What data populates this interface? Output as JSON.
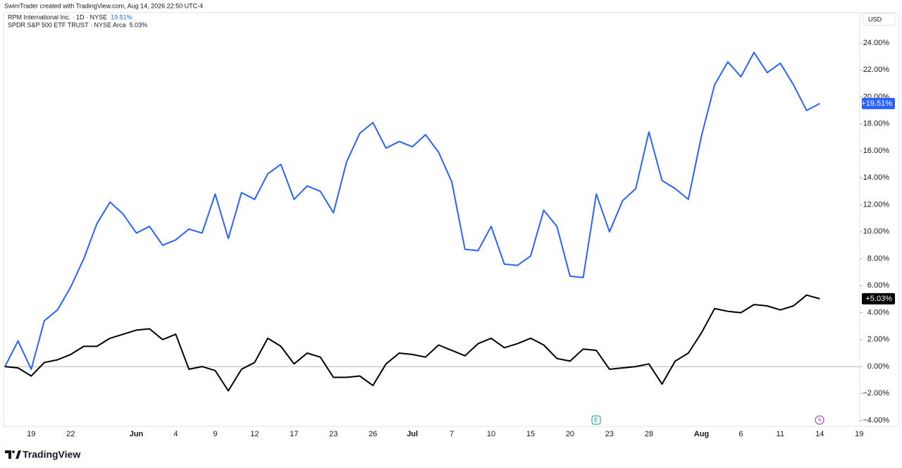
{
  "chart_data": {
    "type": "line",
    "title": "SwimTrader created with TradingView.com, Aug 14, 2026 22:50 UTC-4",
    "currency": "USD",
    "logo": "TradingView",
    "categories": [
      null,
      null,
      "19",
      null,
      null,
      "22",
      null,
      null,
      null,
      null,
      "Jun",
      null,
      null,
      "4",
      null,
      null,
      "9",
      null,
      null,
      "12",
      null,
      null,
      "17",
      null,
      null,
      "23",
      null,
      null,
      "26",
      null,
      null,
      "Jul",
      null,
      null,
      "7",
      null,
      null,
      "10",
      null,
      null,
      "15",
      null,
      null,
      "20",
      null,
      null,
      "23",
      null,
      null,
      "28",
      null,
      null,
      null,
      "Aug",
      null,
      null,
      "6",
      null,
      null,
      "11",
      null,
      null,
      "14",
      null,
      null,
      "19"
    ],
    "series": [
      {
        "name": "RPM International Inc. · 1D · NYSE",
        "color": "#2962ff",
        "legend_value": "19.51%",
        "last_label": "+19.51%",
        "values": [
          0,
          1.9,
          -0.2,
          3.4,
          4.2,
          5.9,
          8.0,
          10.6,
          12.2,
          11.3,
          9.9,
          10.4,
          9.0,
          9.4,
          10.2,
          9.9,
          12.8,
          9.5,
          12.9,
          12.4,
          14.3,
          15.0,
          12.4,
          13.4,
          13.0,
          11.4,
          15.2,
          17.3,
          18.1,
          16.2,
          16.7,
          16.3,
          17.2,
          15.9,
          13.7,
          8.7,
          8.6,
          10.4,
          7.6,
          7.5,
          8.2,
          11.6,
          10.4,
          6.7,
          6.6,
          12.8,
          10.0,
          12.3,
          13.2,
          17.4,
          13.8,
          13.2,
          12.4,
          17.1,
          20.9,
          22.6,
          21.5,
          23.3,
          21.8,
          22.5,
          20.9,
          19.0,
          19.51,
          null,
          null,
          null
        ]
      },
      {
        "name": "SPDR S&P 500 ETF TRUST · NYSE Arca",
        "color": "#000000",
        "legend_value": "5.03%",
        "last_label": "+5.03%",
        "values": [
          0,
          -0.1,
          -0.7,
          0.3,
          0.5,
          0.9,
          1.5,
          1.5,
          2.1,
          2.4,
          2.7,
          2.8,
          2.0,
          2.4,
          -0.2,
          0,
          -0.3,
          -1.8,
          -0.2,
          0.3,
          2.1,
          1.5,
          0.2,
          1.0,
          0.7,
          -0.8,
          -0.8,
          -0.7,
          -1.4,
          0.2,
          1.0,
          0.9,
          0.7,
          1.6,
          1.2,
          0.8,
          1.7,
          2.1,
          1.4,
          1.7,
          2.1,
          1.6,
          0.6,
          0.4,
          1.3,
          1.2,
          -0.2,
          -0.1,
          0,
          0.2,
          -1.3,
          0.4,
          1.0,
          2.5,
          4.3,
          4.1,
          4.0,
          4.6,
          4.5,
          4.2,
          4.5,
          5.3,
          5.03,
          null,
          null,
          null
        ]
      }
    ],
    "ylim": [
      -4.44,
      26.25
    ],
    "yticks": [
      {
        "value": -4,
        "label": "−4.00%"
      },
      {
        "value": -2,
        "label": "−2.00%"
      },
      {
        "value": 0,
        "label": "0.00%"
      },
      {
        "value": 2,
        "label": "2.00%"
      },
      {
        "value": 4,
        "label": "4.00%"
      },
      {
        "value": 6,
        "label": "6.00%"
      },
      {
        "value": 8,
        "label": "8.00%"
      },
      {
        "value": 10,
        "label": "10.00%"
      },
      {
        "value": 12,
        "label": "12.00%"
      },
      {
        "value": 14,
        "label": "14.00%"
      },
      {
        "value": 16,
        "label": "16.00%"
      },
      {
        "value": 18,
        "label": "18.00%"
      },
      {
        "value": 20,
        "label": "20.00%"
      },
      {
        "value": 22,
        "label": "22.00%"
      },
      {
        "value": 24,
        "label": "24.00%"
      }
    ],
    "zero_line": true
  }
}
